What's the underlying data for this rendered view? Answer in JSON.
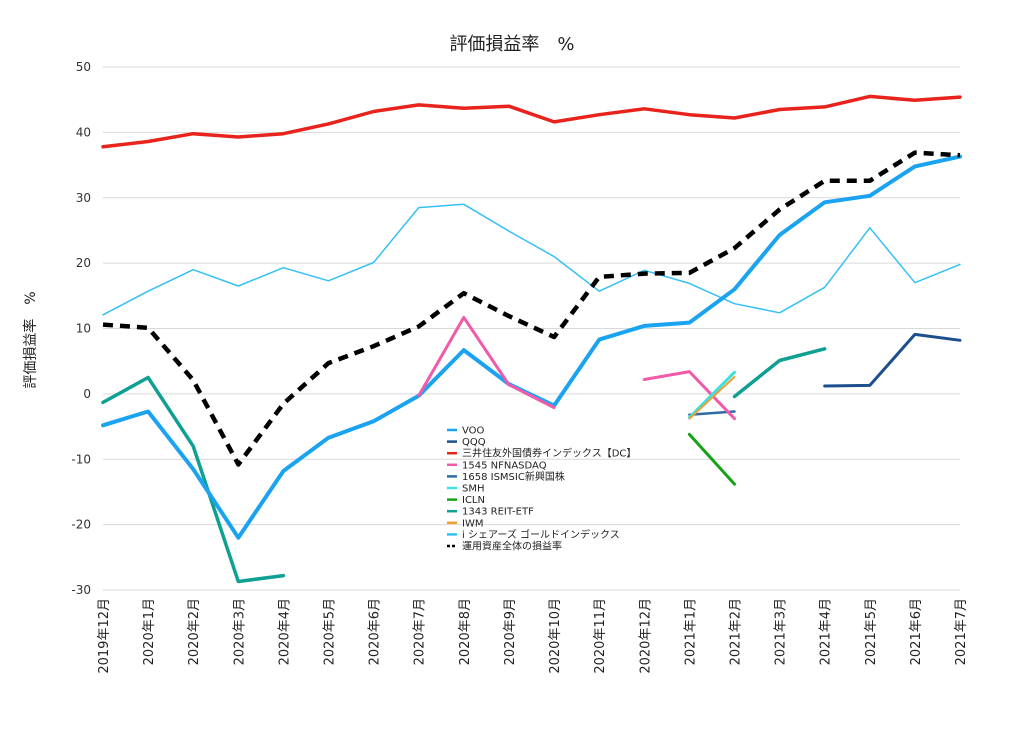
{
  "chart_data": {
    "type": "line",
    "title": "評価損益率　%",
    "xlabel": "",
    "ylabel": "評価損益率　%",
    "ylim": [
      -30,
      50
    ],
    "yticks": [
      50,
      40,
      30,
      20,
      10,
      0,
      -10,
      -20,
      -30
    ],
    "grid": true,
    "legend_position": "center",
    "categories": [
      "2019年12月",
      "2020年1月",
      "2020年2月",
      "2020年3月",
      "2020年4月",
      "2020年5月",
      "2020年6月",
      "2020年7月",
      "2020年8月",
      "2020年9月",
      "2020年10月",
      "2020年11月",
      "2020年12月",
      "2021年1月",
      "2021年2月",
      "2021年3月",
      "2021年4月",
      "2021年5月",
      "2021年6月",
      "2021年7月"
    ],
    "series": [
      {
        "name": "VOO",
        "color": "#1aa3f0",
        "width": 4,
        "dash": "",
        "values": [
          -4.8,
          -2.7,
          -11.5,
          -22,
          -11.8,
          -6.7,
          -4.2,
          -0.3,
          6.7,
          1.5,
          -1.8,
          8.3,
          10.4,
          10.9,
          16,
          24.3,
          29.3,
          30.3,
          34.8,
          36.3
        ]
      },
      {
        "name": "QQQ",
        "color": "#1c4f8c",
        "width": 3,
        "dash": "",
        "values": [
          null,
          null,
          null,
          null,
          null,
          null,
          null,
          null,
          null,
          null,
          null,
          null,
          null,
          null,
          null,
          null,
          1.2,
          1.3,
          9.1,
          8.2
        ]
      },
      {
        "name": "三井住友外国債券インデックス【DC】",
        "color": "#e8231c",
        "width": 3.5,
        "dash": "",
        "values": [
          37.8,
          38.6,
          39.8,
          39.3,
          39.8,
          41.3,
          43.2,
          44.2,
          43.7,
          44,
          41.6,
          42.7,
          43.6,
          42.7,
          42.2,
          43.5,
          43.9,
          45.5,
          44.9,
          45.4
        ]
      },
      {
        "name": "1545 NFNASDAQ",
        "color": "#f05aa8",
        "width": 3,
        "dash": "",
        "values": [
          null,
          null,
          null,
          null,
          null,
          null,
          null,
          -0.3,
          11.7,
          1.4,
          -2.1,
          null,
          2.2,
          3.4,
          -3.8,
          null,
          null,
          null,
          null,
          null
        ]
      },
      {
        "name": "1658 ISMSIC新興国株",
        "color": "#2e6da4",
        "width": 2.5,
        "dash": "",
        "values": [
          null,
          null,
          null,
          null,
          null,
          null,
          null,
          null,
          null,
          null,
          null,
          null,
          null,
          -3.2,
          -2.7,
          null,
          null,
          null,
          null,
          null
        ]
      },
      {
        "name": "SMH",
        "color": "#3de0e0",
        "width": 3,
        "dash": "",
        "values": [
          null,
          null,
          null,
          null,
          null,
          null,
          null,
          null,
          null,
          null,
          null,
          null,
          null,
          -3.6,
          3.3,
          null,
          null,
          null,
          null,
          null
        ]
      },
      {
        "name": "ICLN",
        "color": "#14a314",
        "width": 3,
        "dash": "",
        "values": [
          null,
          null,
          null,
          null,
          null,
          null,
          null,
          null,
          null,
          null,
          null,
          null,
          null,
          -6.2,
          -13.8,
          null,
          null,
          null,
          null,
          null
        ]
      },
      {
        "name": "1343 REIT-ETF",
        "color": "#0fa094",
        "width": 3.5,
        "dash": "",
        "values": [
          -1.3,
          2.5,
          -8,
          -28.7,
          -27.8,
          null,
          null,
          null,
          null,
          null,
          null,
          null,
          null,
          null,
          -0.4,
          5.1,
          6.9,
          null,
          null,
          null
        ]
      },
      {
        "name": "IWM",
        "color": "#f0a030",
        "width": 2,
        "dash": "",
        "values": [
          null,
          null,
          null,
          null,
          null,
          null,
          null,
          null,
          null,
          null,
          null,
          null,
          null,
          -3.8,
          2.6,
          null,
          null,
          null,
          null,
          null
        ]
      },
      {
        "name": "i シェアーズ ゴールドインデックス",
        "color": "#35c0f5",
        "width": 1.5,
        "dash": "",
        "values": [
          12.1,
          15.7,
          19,
          16.5,
          19.3,
          17.3,
          20.1,
          28.5,
          29,
          24.9,
          21,
          15.7,
          18.9,
          16.9,
          13.8,
          12.4,
          16.3,
          25.4,
          17,
          19.8
        ]
      },
      {
        "name": "運用資産全体の損益率",
        "color": "#000000",
        "width": 4.5,
        "dash": "10,7",
        "values": [
          10.6,
          10.1,
          2.1,
          -10.8,
          -1.5,
          4.7,
          7.3,
          10.3,
          15.4,
          11.9,
          8.7,
          17.9,
          18.4,
          18.5,
          22.3,
          28.2,
          32.6,
          32.6,
          36.9,
          36.5
        ]
      }
    ]
  }
}
